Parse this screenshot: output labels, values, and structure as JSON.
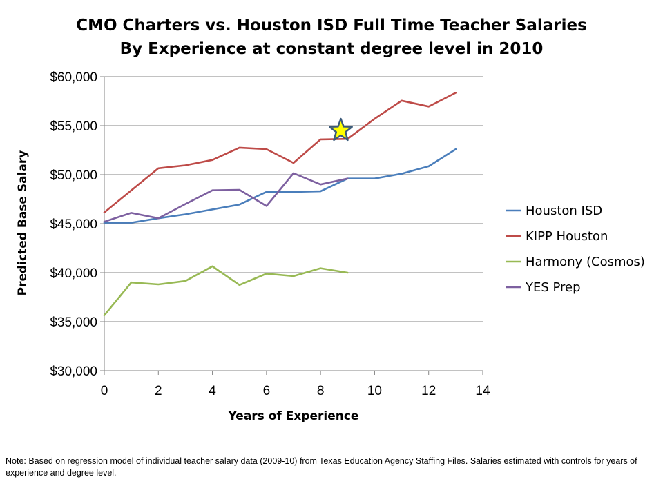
{
  "title_line1": "CMO Charters vs. Houston ISD Full Time Teacher Salaries",
  "title_line2": "By Experience at constant degree level in 2010",
  "note": "Note:  Based on regression model of individual teacher salary data (2009-10) from Texas Education Agency Staffing Files. Salaries estimated with controls for years of experience and degree level.",
  "chart_data": {
    "type": "line",
    "title": "CMO Charters vs. Houston ISD Full Time Teacher Salaries By Experience at constant degree level in 2010",
    "xlabel": "Years of Experience",
    "ylabel": "Predicted Base Salary",
    "xlim": [
      0,
      14
    ],
    "ylim": [
      30000,
      60000
    ],
    "x_ticks": [
      0,
      2,
      4,
      6,
      8,
      10,
      12,
      14
    ],
    "x_tick_labels": [
      "0",
      "2",
      "4",
      "6",
      "8",
      "10",
      "12",
      "14"
    ],
    "y_ticks": [
      30000,
      35000,
      40000,
      45000,
      50000,
      55000,
      60000
    ],
    "y_tick_labels": [
      "$30,000",
      "$35,000",
      "$40,000",
      "$45,000",
      "$50,000",
      "$55,000",
      "$60,000"
    ],
    "grid": "horizontal",
    "legend_position": "right",
    "series": [
      {
        "name": "Houston ISD",
        "color": "#4a7ebb",
        "x": [
          0,
          1,
          2,
          3,
          4,
          5,
          6,
          7,
          8,
          9,
          10,
          11,
          12,
          13
        ],
        "values": [
          45100,
          45100,
          45550,
          45950,
          46450,
          46950,
          48250,
          48250,
          48300,
          49600,
          49600,
          50100,
          50850,
          52600
        ]
      },
      {
        "name": "KIPP Houston",
        "color": "#be4b48",
        "x": [
          0,
          1,
          2,
          3,
          4,
          5,
          6,
          7,
          8,
          9,
          10,
          11,
          12,
          13
        ],
        "values": [
          46150,
          48400,
          50650,
          50950,
          51500,
          52750,
          52600,
          51200,
          53600,
          53650,
          55700,
          57550,
          56950,
          58350
        ]
      },
      {
        "name": "Harmony (Cosmos)",
        "color": "#98b954",
        "x": [
          0,
          1,
          2,
          3,
          4,
          5,
          6,
          7,
          8,
          9
        ],
        "values": [
          35650,
          39000,
          38800,
          39150,
          40650,
          38750,
          39900,
          39650,
          40450,
          40000
        ]
      },
      {
        "name": "YES Prep",
        "color": "#7d60a0",
        "x": [
          0,
          1,
          2,
          3,
          4,
          5,
          6,
          7,
          8,
          9
        ],
        "values": [
          45200,
          46100,
          45550,
          47000,
          48400,
          48450,
          46800,
          50150,
          49000,
          49600
        ]
      }
    ],
    "annotations": [
      {
        "type": "star",
        "x": 8.75,
        "y": 54500,
        "fill": "#ffff00",
        "stroke": "#3b5a7a"
      }
    ]
  }
}
